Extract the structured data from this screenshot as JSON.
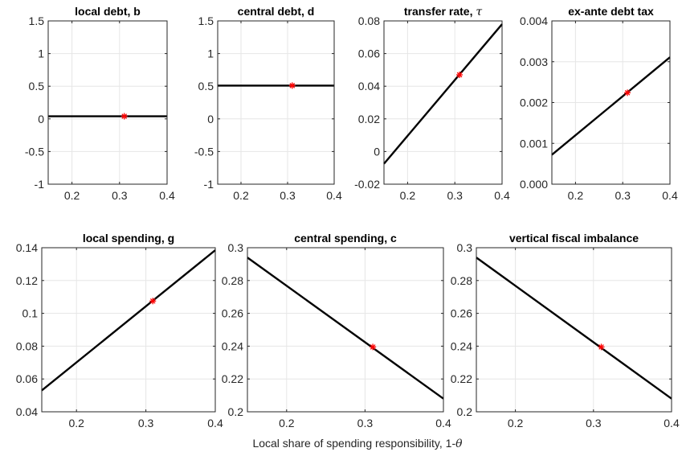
{
  "figure": {
    "xlabel": "Local share of spending responsibility, 1-",
    "xlabel_symbol": "θ"
  },
  "colors": {
    "line": "#000000",
    "marker": "#ff0000",
    "grid": "#e6e6e6",
    "axes": "#262626"
  },
  "chart_data": [
    {
      "type": "line",
      "title": "local debt, b",
      "xlim": [
        0.15,
        0.4
      ],
      "ylim": [
        -1,
        1.5
      ],
      "xticks": [
        0.2,
        0.3,
        0.4
      ],
      "xtick_labels": [
        "0.2",
        "0.3",
        "0.4"
      ],
      "yticks": [
        -1,
        -0.5,
        0,
        0.5,
        1,
        1.5
      ],
      "ytick_labels": [
        "-1",
        "-0.5",
        "0",
        "0.5",
        "1",
        "1.5"
      ],
      "series": [
        {
          "x": [
            0.15,
            0.4
          ],
          "y": [
            0.04,
            0.04
          ]
        }
      ],
      "marker": {
        "x": 0.31,
        "y": 0.04
      },
      "grid": true
    },
    {
      "type": "line",
      "title": "central debt, d",
      "xlim": [
        0.15,
        0.4
      ],
      "ylim": [
        -1,
        1.5
      ],
      "xticks": [
        0.2,
        0.3,
        0.4
      ],
      "xtick_labels": [
        "0.2",
        "0.3",
        "0.4"
      ],
      "yticks": [
        -1,
        -0.5,
        0,
        0.5,
        1,
        1.5
      ],
      "ytick_labels": [
        "-1",
        "-0.5",
        "0",
        "0.5",
        "1",
        "1.5"
      ],
      "series": [
        {
          "x": [
            0.15,
            0.4
          ],
          "y": [
            0.51,
            0.51
          ]
        }
      ],
      "marker": {
        "x": 0.31,
        "y": 0.51
      },
      "grid": true
    },
    {
      "type": "line",
      "title": "transfer rate, ",
      "title_symbol": "τ",
      "xlim": [
        0.15,
        0.4
      ],
      "ylim": [
        -0.02,
        0.08
      ],
      "xticks": [
        0.2,
        0.3,
        0.4
      ],
      "xtick_labels": [
        "0.2",
        "0.3",
        "0.4"
      ],
      "yticks": [
        -0.02,
        0,
        0.02,
        0.04,
        0.06,
        0.08
      ],
      "ytick_labels": [
        "-0.02",
        "0",
        "0.02",
        "0.04",
        "0.06",
        "0.08"
      ],
      "series": [
        {
          "x": [
            0.15,
            0.4
          ],
          "y": [
            -0.0075,
            0.078
          ]
        }
      ],
      "marker": {
        "x": 0.31,
        "y": 0.047
      },
      "grid": true
    },
    {
      "type": "line",
      "title": "ex-ante debt tax",
      "xlim": [
        0.15,
        0.4
      ],
      "ylim": [
        0,
        0.004
      ],
      "xticks": [
        0.2,
        0.3,
        0.4
      ],
      "xtick_labels": [
        "0.2",
        "0.3",
        "0.4"
      ],
      "yticks": [
        0,
        0.001,
        0.002,
        0.003,
        0.004
      ],
      "ytick_labels": [
        "0.000",
        "0.001",
        "0.002",
        "0.003",
        "0.004"
      ],
      "series": [
        {
          "x": [
            0.15,
            0.4
          ],
          "y": [
            0.00072,
            0.00311
          ]
        }
      ],
      "marker": {
        "x": 0.31,
        "y": 0.00224
      },
      "grid": true
    },
    {
      "type": "line",
      "title": "local spending, g",
      "xlim": [
        0.15,
        0.4
      ],
      "ylim": [
        0.04,
        0.14
      ],
      "xticks": [
        0.2,
        0.3,
        0.4
      ],
      "xtick_labels": [
        "0.2",
        "0.3",
        "0.4"
      ],
      "yticks": [
        0.04,
        0.06,
        0.08,
        0.1,
        0.12,
        0.14
      ],
      "ytick_labels": [
        "0.04",
        "0.06",
        "0.08",
        "0.1",
        "0.12",
        "0.14"
      ],
      "series": [
        {
          "x": [
            0.15,
            0.4
          ],
          "y": [
            0.053,
            0.1385
          ]
        }
      ],
      "marker": {
        "x": 0.31,
        "y": 0.1075
      },
      "grid": true
    },
    {
      "type": "line",
      "title": "central spending, c",
      "xlim": [
        0.15,
        0.4
      ],
      "ylim": [
        0.2,
        0.3
      ],
      "xticks": [
        0.2,
        0.3,
        0.4
      ],
      "xtick_labels": [
        "0.2",
        "0.3",
        "0.4"
      ],
      "yticks": [
        0.2,
        0.22,
        0.24,
        0.26,
        0.28,
        0.3
      ],
      "ytick_labels": [
        "0.2",
        "0.22",
        "0.24",
        "0.26",
        "0.28",
        "0.3"
      ],
      "series": [
        {
          "x": [
            0.15,
            0.4
          ],
          "y": [
            0.294,
            0.208
          ]
        }
      ],
      "marker": {
        "x": 0.31,
        "y": 0.2395
      },
      "grid": true
    },
    {
      "type": "line",
      "title": "vertical fiscal imbalance",
      "xlim": [
        0.15,
        0.4
      ],
      "ylim": [
        0.2,
        0.3
      ],
      "xticks": [
        0.2,
        0.3,
        0.4
      ],
      "xtick_labels": [
        "0.2",
        "0.3",
        "0.4"
      ],
      "yticks": [
        0.2,
        0.22,
        0.24,
        0.26,
        0.28,
        0.3
      ],
      "ytick_labels": [
        "0.2",
        "0.22",
        "0.24",
        "0.26",
        "0.28",
        "0.3"
      ],
      "series": [
        {
          "x": [
            0.15,
            0.4
          ],
          "y": [
            0.294,
            0.208
          ]
        }
      ],
      "marker": {
        "x": 0.31,
        "y": 0.2395
      },
      "grid": true
    }
  ]
}
